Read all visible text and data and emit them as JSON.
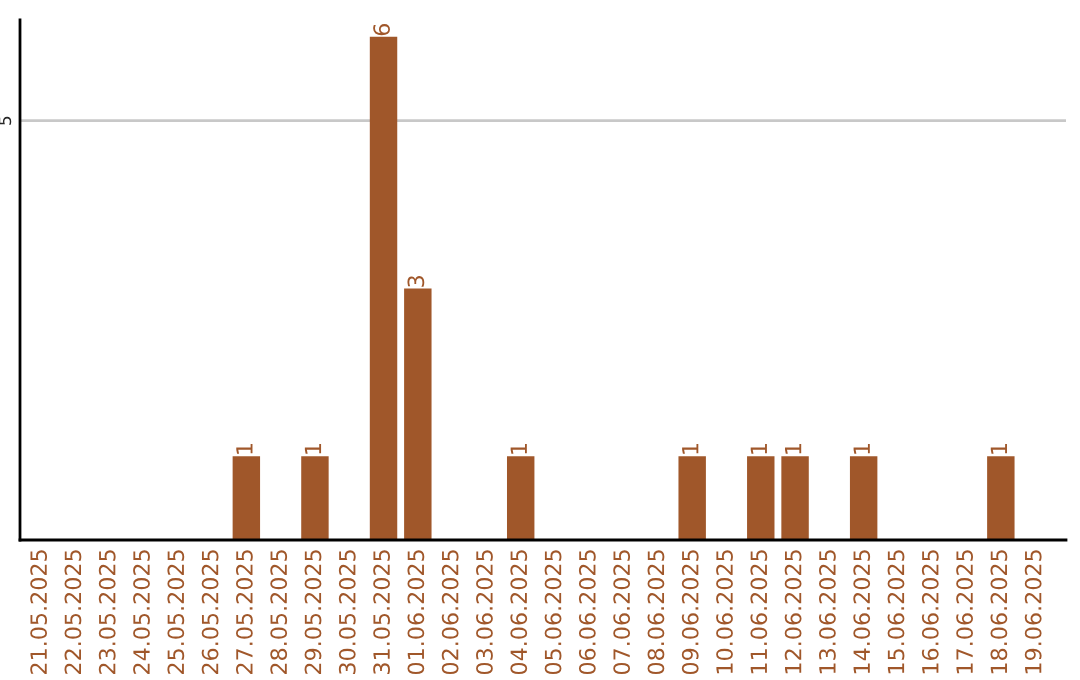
{
  "chart_data": {
    "type": "bar",
    "categories": [
      "21.05.2025",
      "22.05.2025",
      "23.05.2025",
      "24.05.2025",
      "25.05.2025",
      "26.05.2025",
      "27.05.2025",
      "28.05.2025",
      "29.05.2025",
      "30.05.2025",
      "31.05.2025",
      "01.06.2025",
      "02.06.2025",
      "03.06.2025",
      "04.06.2025",
      "05.06.2025",
      "06.06.2025",
      "07.06.2025",
      "08.06.2025",
      "09.06.2025",
      "10.06.2025",
      "11.06.2025",
      "12.06.2025",
      "13.06.2025",
      "14.06.2025",
      "15.06.2025",
      "16.06.2025",
      "17.06.2025",
      "18.06.2025",
      "19.06.2025"
    ],
    "values": [
      0,
      0,
      0,
      0,
      0,
      0,
      1,
      0,
      1,
      0,
      6,
      3,
      0,
      0,
      1,
      0,
      0,
      0,
      0,
      1,
      0,
      1,
      1,
      0,
      1,
      0,
      0,
      0,
      1,
      0
    ],
    "value_labels": [
      null,
      null,
      null,
      null,
      null,
      null,
      "1",
      null,
      "1",
      null,
      "6",
      "3",
      null,
      null,
      "1",
      null,
      null,
      null,
      null,
      "1",
      null,
      "1",
      "1",
      null,
      "1",
      null,
      null,
      null,
      "1",
      null
    ],
    "color": "#a0572a",
    "ylim": [
      0,
      6.2
    ],
    "yticks": [
      5
    ],
    "grid": "y"
  }
}
